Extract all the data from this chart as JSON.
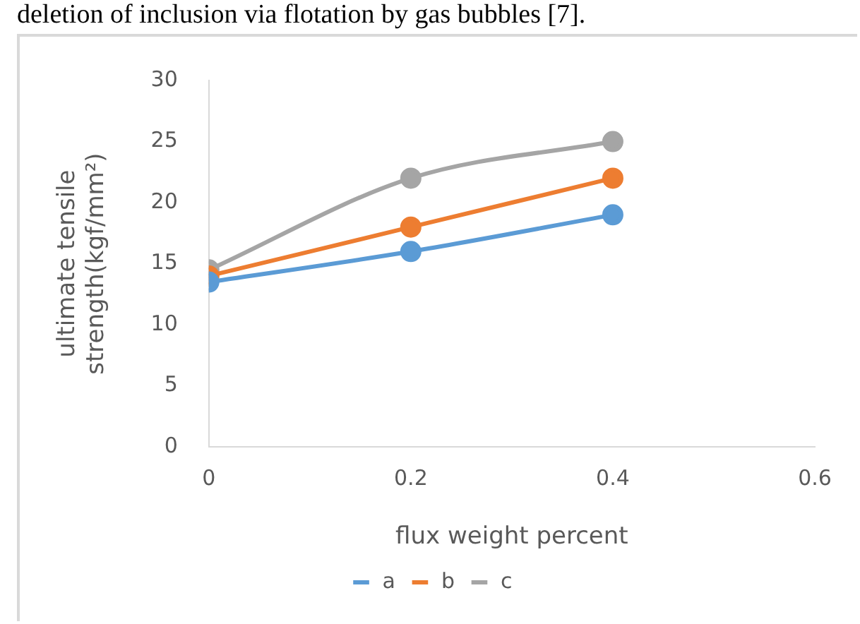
{
  "chart_data": {
    "type": "line",
    "xlabel": "flux weight percent",
    "ylabel": "ultimate tensile strength(kgf/mm²)",
    "annotations": [
      "deletion of inclusion via flotation by gas bubbles [7]."
    ],
    "x": [
      0,
      0.2,
      0.4
    ],
    "series": [
      {
        "name": "a",
        "color": "#5b9bd5",
        "values": [
          13.5,
          16,
          19
        ]
      },
      {
        "name": "b",
        "color": "#ed7d31",
        "values": [
          14,
          18,
          22
        ]
      },
      {
        "name": "c",
        "color": "#a5a5a5",
        "values": [
          14.5,
          22,
          25
        ]
      }
    ],
    "xlim": [
      0,
      0.6
    ],
    "xticks": [
      0,
      0.2,
      0.4,
      0.6
    ],
    "ylim": [
      0,
      30
    ],
    "yticks": [
      0,
      5,
      10,
      15,
      20,
      25,
      30
    ],
    "grid": false,
    "legend": "bottom",
    "marker": "circle",
    "line_style": "solid"
  }
}
